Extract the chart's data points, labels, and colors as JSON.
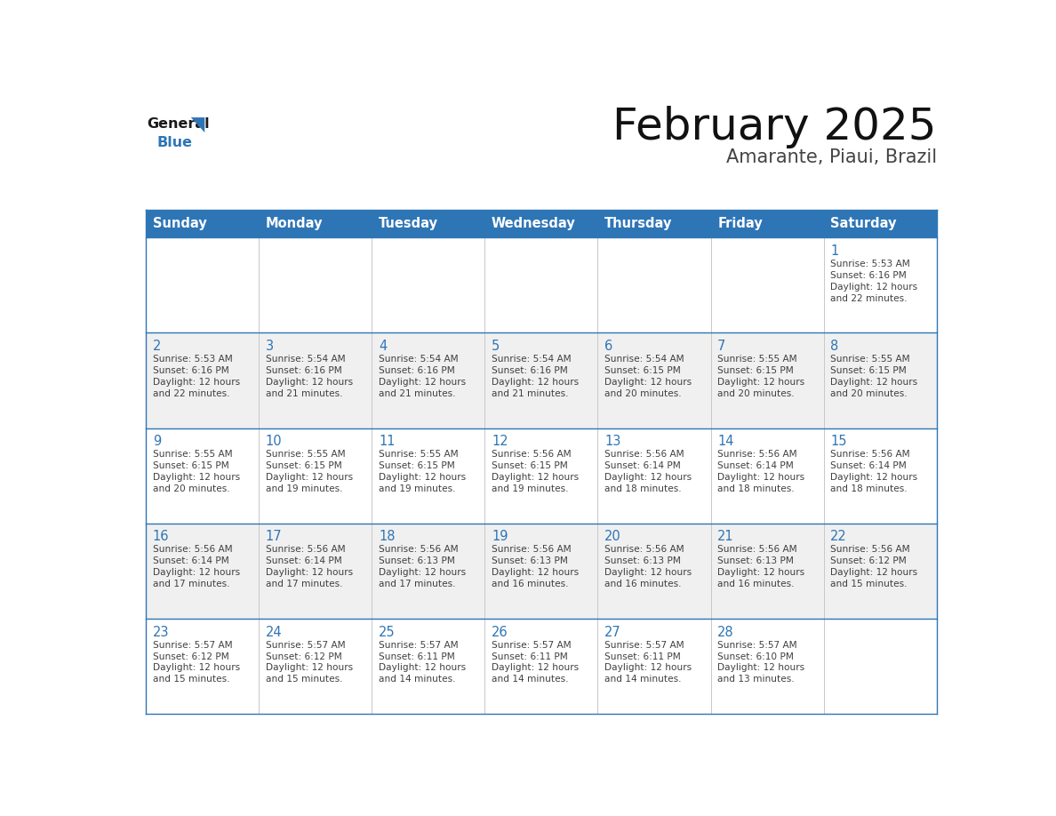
{
  "title": "February 2025",
  "subtitle": "Amarante, Piaui, Brazil",
  "header_bg": "#2E75B6",
  "header_text_color": "#FFFFFF",
  "day_names": [
    "Sunday",
    "Monday",
    "Tuesday",
    "Wednesday",
    "Thursday",
    "Friday",
    "Saturday"
  ],
  "bg_color": "#FFFFFF",
  "cell_bg_even": "#F0F0F0",
  "cell_bg_odd": "#FFFFFF",
  "grid_line_color": "#2E75B6",
  "day_num_color": "#2E75B6",
  "cell_text_color": "#404040",
  "border_color": "#AAAAAA",
  "calendar": [
    [
      null,
      null,
      null,
      null,
      null,
      null,
      1
    ],
    [
      2,
      3,
      4,
      5,
      6,
      7,
      8
    ],
    [
      9,
      10,
      11,
      12,
      13,
      14,
      15
    ],
    [
      16,
      17,
      18,
      19,
      20,
      21,
      22
    ],
    [
      23,
      24,
      25,
      26,
      27,
      28,
      null
    ]
  ],
  "cell_data": {
    "1": {
      "sunrise": "5:53 AM",
      "sunset": "6:16 PM",
      "daylight": "12 hours and 22 minutes."
    },
    "2": {
      "sunrise": "5:53 AM",
      "sunset": "6:16 PM",
      "daylight": "12 hours and 22 minutes."
    },
    "3": {
      "sunrise": "5:54 AM",
      "sunset": "6:16 PM",
      "daylight": "12 hours and 21 minutes."
    },
    "4": {
      "sunrise": "5:54 AM",
      "sunset": "6:16 PM",
      "daylight": "12 hours and 21 minutes."
    },
    "5": {
      "sunrise": "5:54 AM",
      "sunset": "6:16 PM",
      "daylight": "12 hours and 21 minutes."
    },
    "6": {
      "sunrise": "5:54 AM",
      "sunset": "6:15 PM",
      "daylight": "12 hours and 20 minutes."
    },
    "7": {
      "sunrise": "5:55 AM",
      "sunset": "6:15 PM",
      "daylight": "12 hours and 20 minutes."
    },
    "8": {
      "sunrise": "5:55 AM",
      "sunset": "6:15 PM",
      "daylight": "12 hours and 20 minutes."
    },
    "9": {
      "sunrise": "5:55 AM",
      "sunset": "6:15 PM",
      "daylight": "12 hours and 20 minutes."
    },
    "10": {
      "sunrise": "5:55 AM",
      "sunset": "6:15 PM",
      "daylight": "12 hours and 19 minutes."
    },
    "11": {
      "sunrise": "5:55 AM",
      "sunset": "6:15 PM",
      "daylight": "12 hours and 19 minutes."
    },
    "12": {
      "sunrise": "5:56 AM",
      "sunset": "6:15 PM",
      "daylight": "12 hours and 19 minutes."
    },
    "13": {
      "sunrise": "5:56 AM",
      "sunset": "6:14 PM",
      "daylight": "12 hours and 18 minutes."
    },
    "14": {
      "sunrise": "5:56 AM",
      "sunset": "6:14 PM",
      "daylight": "12 hours and 18 minutes."
    },
    "15": {
      "sunrise": "5:56 AM",
      "sunset": "6:14 PM",
      "daylight": "12 hours and 18 minutes."
    },
    "16": {
      "sunrise": "5:56 AM",
      "sunset": "6:14 PM",
      "daylight": "12 hours and 17 minutes."
    },
    "17": {
      "sunrise": "5:56 AM",
      "sunset": "6:14 PM",
      "daylight": "12 hours and 17 minutes."
    },
    "18": {
      "sunrise": "5:56 AM",
      "sunset": "6:13 PM",
      "daylight": "12 hours and 17 minutes."
    },
    "19": {
      "sunrise": "5:56 AM",
      "sunset": "6:13 PM",
      "daylight": "12 hours and 16 minutes."
    },
    "20": {
      "sunrise": "5:56 AM",
      "sunset": "6:13 PM",
      "daylight": "12 hours and 16 minutes."
    },
    "21": {
      "sunrise": "5:56 AM",
      "sunset": "6:13 PM",
      "daylight": "12 hours and 16 minutes."
    },
    "22": {
      "sunrise": "5:56 AM",
      "sunset": "6:12 PM",
      "daylight": "12 hours and 15 minutes."
    },
    "23": {
      "sunrise": "5:57 AM",
      "sunset": "6:12 PM",
      "daylight": "12 hours and 15 minutes."
    },
    "24": {
      "sunrise": "5:57 AM",
      "sunset": "6:12 PM",
      "daylight": "12 hours and 15 minutes."
    },
    "25": {
      "sunrise": "5:57 AM",
      "sunset": "6:11 PM",
      "daylight": "12 hours and 14 minutes."
    },
    "26": {
      "sunrise": "5:57 AM",
      "sunset": "6:11 PM",
      "daylight": "12 hours and 14 minutes."
    },
    "27": {
      "sunrise": "5:57 AM",
      "sunset": "6:11 PM",
      "daylight": "12 hours and 14 minutes."
    },
    "28": {
      "sunrise": "5:57 AM",
      "sunset": "6:10 PM",
      "daylight": "12 hours and 13 minutes."
    }
  }
}
